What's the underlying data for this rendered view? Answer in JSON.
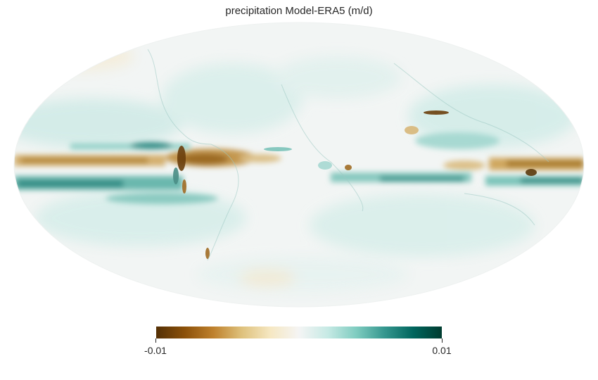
{
  "title": "precipitation Model-ERA5 (m/d)",
  "projection": "mollweide",
  "colormap": {
    "name": "BrBG",
    "min_label": "-0.01",
    "max_label": "0.01",
    "vmin": -0.01,
    "vmax": 0.01,
    "stops": [
      "#543005",
      "#8c510a",
      "#bf812d",
      "#dfc27d",
      "#f6e8c3",
      "#f5f5f5",
      "#c7eae5",
      "#80cdc1",
      "#35978f",
      "#01665e",
      "#003c30"
    ]
  }
}
